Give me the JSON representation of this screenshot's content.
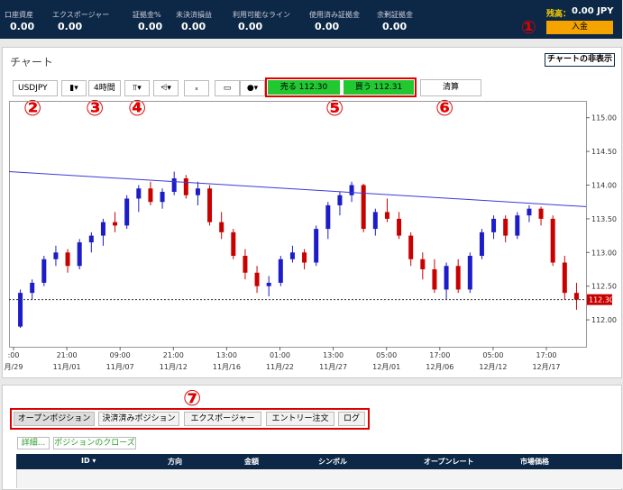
{
  "header": {
    "stats": [
      {
        "label": "口座資産",
        "value": "0.00"
      },
      {
        "label": "エクスポージャー",
        "value": "0.00"
      },
      {
        "label": "証拠金%",
        "value": "0.00"
      },
      {
        "label": "未決済損益",
        "value": "0.00"
      },
      {
        "label": "利用可能なライン",
        "value": "0.00"
      },
      {
        "label": "使用済み証拠金",
        "value": "0.00"
      },
      {
        "label": "余剰証拠金",
        "value": "0.00"
      }
    ],
    "balance_label": "残高：",
    "balance": "0.00 JPY",
    "deposit": "入金",
    "marker": "①"
  },
  "panel": {
    "title": "チャート",
    "hide_button": "チャートの非表示"
  },
  "toolbar": {
    "symbol": "USDJPY",
    "timeframe": "4時間",
    "sell": "売る 112.30",
    "buy": "買う 112.31",
    "close": "清算",
    "markers": [
      "②",
      "③",
      "④",
      "⑤",
      "⑥"
    ]
  },
  "chart_data": {
    "type": "candlestick",
    "up_color": "#1c1cc8",
    "down_color": "#c80000",
    "ylim": [
      111.6,
      115.25
    ],
    "yticks": [
      {
        "value": 112,
        "label": "112.00"
      },
      {
        "value": 112.5,
        "label": "112.50"
      },
      {
        "value": 113,
        "label": "113.00"
      },
      {
        "value": 113.5,
        "label": "113.50"
      },
      {
        "value": 114,
        "label": "114.00"
      },
      {
        "value": 114.5,
        "label": "114.50"
      },
      {
        "value": 115,
        "label": "115.00"
      }
    ],
    "x_labels": [
      {
        "time": ":00",
        "date": "月/29"
      },
      {
        "time": "21:00",
        "date": "11月/01"
      },
      {
        "time": "09:00",
        "date": "11月/07"
      },
      {
        "time": "21:00",
        "date": "11月/12"
      },
      {
        "time": "13:00",
        "date": "11月/16"
      },
      {
        "time": "01:00",
        "date": "11月/22"
      },
      {
        "time": "13:00",
        "date": "11月/27"
      },
      {
        "time": "05:00",
        "date": "12月/01"
      },
      {
        "time": "17:00",
        "date": "12月/06"
      },
      {
        "time": "05:00",
        "date": "12月/12"
      },
      {
        "time": "17:00",
        "date": "12月/17"
      }
    ],
    "candles": [
      [
        111.9,
        112.45,
        111.88,
        112.4
      ],
      [
        112.4,
        112.6,
        112.3,
        112.55
      ],
      [
        112.55,
        112.95,
        112.5,
        112.9
      ],
      [
        112.9,
        113.1,
        112.8,
        113.0
      ],
      [
        113.0,
        113.05,
        112.7,
        112.8
      ],
      [
        112.8,
        113.2,
        112.75,
        113.15
      ],
      [
        113.15,
        113.3,
        113.0,
        113.25
      ],
      [
        113.25,
        113.5,
        113.1,
        113.45
      ],
      [
        113.45,
        113.6,
        113.3,
        113.4
      ],
      [
        113.4,
        113.85,
        113.35,
        113.8
      ],
      [
        113.8,
        114.0,
        113.6,
        113.95
      ],
      [
        113.95,
        114.05,
        113.7,
        113.75
      ],
      [
        113.75,
        113.95,
        113.65,
        113.9
      ],
      [
        113.9,
        114.2,
        113.85,
        114.1
      ],
      [
        114.1,
        114.15,
        113.8,
        113.85
      ],
      [
        113.85,
        114.05,
        113.7,
        113.95
      ],
      [
        113.95,
        114.0,
        113.4,
        113.45
      ],
      [
        113.45,
        113.6,
        113.2,
        113.3
      ],
      [
        113.3,
        113.35,
        112.9,
        112.95
      ],
      [
        112.95,
        113.05,
        112.6,
        112.7
      ],
      [
        112.7,
        112.8,
        112.4,
        112.5
      ],
      [
        112.5,
        112.65,
        112.35,
        112.55
      ],
      [
        112.55,
        112.95,
        112.5,
        112.9
      ],
      [
        112.9,
        113.1,
        112.85,
        113.0
      ],
      [
        113.0,
        113.05,
        112.75,
        112.85
      ],
      [
        112.85,
        113.4,
        112.8,
        113.35
      ],
      [
        113.35,
        113.75,
        113.2,
        113.7
      ],
      [
        113.7,
        113.9,
        113.55,
        113.85
      ],
      [
        113.85,
        114.05,
        113.75,
        114.0
      ],
      [
        114.0,
        114.02,
        113.3,
        113.35
      ],
      [
        113.35,
        113.65,
        113.25,
        113.6
      ],
      [
        113.6,
        113.8,
        113.45,
        113.5
      ],
      [
        113.5,
        113.6,
        113.2,
        113.25
      ],
      [
        113.25,
        113.3,
        112.8,
        112.9
      ],
      [
        112.9,
        113.0,
        112.6,
        112.75
      ],
      [
        112.75,
        112.9,
        112.4,
        112.45
      ],
      [
        112.45,
        112.85,
        112.3,
        112.8
      ],
      [
        112.8,
        112.9,
        112.4,
        112.45
      ],
      [
        112.45,
        113.0,
        112.4,
        112.95
      ],
      [
        112.95,
        113.35,
        112.9,
        113.3
      ],
      [
        113.3,
        113.55,
        113.2,
        113.5
      ],
      [
        113.5,
        113.55,
        113.15,
        113.25
      ],
      [
        113.25,
        113.6,
        113.2,
        113.55
      ],
      [
        113.55,
        113.7,
        113.45,
        113.65
      ],
      [
        113.65,
        113.68,
        113.4,
        113.5
      ],
      [
        113.5,
        113.55,
        112.8,
        112.85
      ],
      [
        112.85,
        112.95,
        112.3,
        112.4
      ],
      [
        112.4,
        112.55,
        112.15,
        112.3
      ]
    ],
    "trendline": {
      "values": [
        114.2,
        113.68
      ],
      "color": "#3a3ad8"
    },
    "last_price": {
      "value": 112.3,
      "label": "112.30"
    }
  },
  "positions": {
    "marker": "⑦",
    "tabs": [
      "オープンポジション",
      "決済済みポジション",
      "エクスポージャー",
      "エントリー注文",
      "ログ"
    ],
    "buttons": [
      "詳細...",
      "ポジションのクローズ"
    ],
    "columns": [
      "ID ▾",
      "方向",
      "金額",
      "シンボル",
      "オープンレート",
      "市場価格"
    ]
  }
}
